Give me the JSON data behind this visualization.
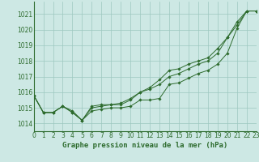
{
  "bg_color": "#cde8e4",
  "grid_color": "#9dc8c0",
  "line_color": "#2d6b2d",
  "marker_color": "#2d6b2d",
  "xlabel": "Graphe pression niveau de la mer (hPa)",
  "xlim": [
    0,
    23
  ],
  "ylim": [
    1013.5,
    1021.8
  ],
  "yticks": [
    1014,
    1015,
    1016,
    1017,
    1018,
    1019,
    1020,
    1021
  ],
  "xticks": [
    0,
    1,
    2,
    3,
    4,
    5,
    6,
    7,
    8,
    9,
    10,
    11,
    12,
    13,
    14,
    15,
    16,
    17,
    18,
    19,
    20,
    21,
    22,
    23
  ],
  "x_series": [
    0,
    1,
    2,
    3,
    4,
    5,
    6,
    7,
    8,
    9,
    10,
    11,
    12,
    13,
    14,
    15,
    16,
    17,
    18,
    19,
    20,
    21,
    22,
    23
  ],
  "series": [
    [
      1015.8,
      1014.7,
      1014.7,
      1015.1,
      1014.7,
      1014.2,
      1014.8,
      1014.9,
      1015.0,
      1015.0,
      1015.1,
      1015.5,
      1015.5,
      1015.6,
      1016.5,
      1016.6,
      1016.9,
      1017.2,
      1017.4,
      1017.8,
      1018.5,
      1020.1,
      1021.2,
      1021.2
    ],
    [
      1015.8,
      1014.7,
      1014.7,
      1015.1,
      1014.7,
      1014.2,
      1015.0,
      1015.1,
      1015.2,
      1015.2,
      1015.5,
      1016.0,
      1016.2,
      1016.5,
      1017.0,
      1017.2,
      1017.5,
      1017.8,
      1018.0,
      1018.5,
      1019.5,
      1020.3,
      1021.2,
      1021.2
    ],
    [
      1015.8,
      1014.7,
      1014.7,
      1015.1,
      1014.8,
      1014.2,
      1015.1,
      1015.2,
      1015.2,
      1015.3,
      1015.6,
      1016.0,
      1016.3,
      1016.8,
      1017.4,
      1017.5,
      1017.8,
      1018.0,
      1018.2,
      1018.8,
      1019.5,
      1020.5,
      1021.2,
      1021.2
    ]
  ],
  "figsize": [
    3.2,
    2.0
  ],
  "dpi": 100,
  "tick_fontsize": 5.5,
  "xlabel_fontsize": 6.5
}
